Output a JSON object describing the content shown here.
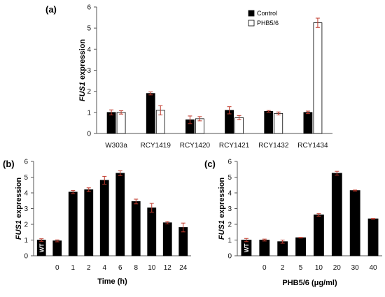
{
  "chart_data": [
    {
      "panel": "(a)",
      "type": "bar",
      "ylabel_italic": "FUS1",
      "ylabel_rest": " expression",
      "ylim": [
        0,
        6
      ],
      "yticks": [
        0,
        1,
        2,
        3,
        4,
        5,
        6
      ],
      "categories": [
        "W303a",
        "RCY1419",
        "RCY1420",
        "RCY1421",
        "RCY1432",
        "RCY1434"
      ],
      "series": [
        {
          "name": "Control",
          "color": "#000000",
          "values": [
            1.0,
            1.9,
            0.65,
            1.1,
            1.05,
            1.0
          ],
          "errors": [
            0.12,
            0.07,
            0.18,
            0.17,
            0.04,
            0.06
          ]
        },
        {
          "name": "PHB5/6",
          "color": "#ffffff",
          "values": [
            1.0,
            1.1,
            0.7,
            0.75,
            0.95,
            5.25
          ],
          "errors": [
            0.08,
            0.22,
            0.1,
            0.1,
            0.07,
            0.22
          ]
        }
      ],
      "legend_position": "top-right",
      "error_bar_color": "#c0392b"
    },
    {
      "panel": "(b)",
      "type": "bar",
      "ylabel_italic": "FUS1",
      "ylabel_rest": " expression",
      "xlabel": "Time (h)",
      "ylim": [
        0,
        6
      ],
      "yticks": [
        0,
        1,
        2,
        3,
        4,
        5,
        6
      ],
      "categories": [
        "WT",
        "0",
        "1",
        "2",
        "4",
        "6",
        "8",
        "10",
        "12",
        "24"
      ],
      "inbar_label": "WT",
      "values": [
        1.0,
        0.95,
        4.05,
        4.2,
        4.8,
        5.25,
        3.45,
        3.05,
        2.1,
        1.8
      ],
      "errors": [
        0.08,
        0.06,
        0.1,
        0.12,
        0.25,
        0.15,
        0.15,
        0.28,
        0.07,
        0.28
      ]
    },
    {
      "panel": "(c)",
      "type": "bar",
      "ylabel_italic": "FUS1",
      "ylabel_rest": " expression",
      "xlabel": "PHB5/6 (μg/ml)",
      "ylim": [
        0,
        6
      ],
      "yticks": [
        0,
        1,
        2,
        3,
        4,
        5,
        6
      ],
      "categories": [
        "WT",
        "0",
        "2",
        "5",
        "10",
        "20",
        "30",
        "40"
      ],
      "inbar_label": "WT",
      "values": [
        1.0,
        1.0,
        0.9,
        1.15,
        2.6,
        5.25,
        4.15,
        2.35
      ],
      "errors": [
        0.1,
        0.06,
        0.1,
        0.02,
        0.08,
        0.12,
        0.03,
        0.02
      ]
    }
  ]
}
